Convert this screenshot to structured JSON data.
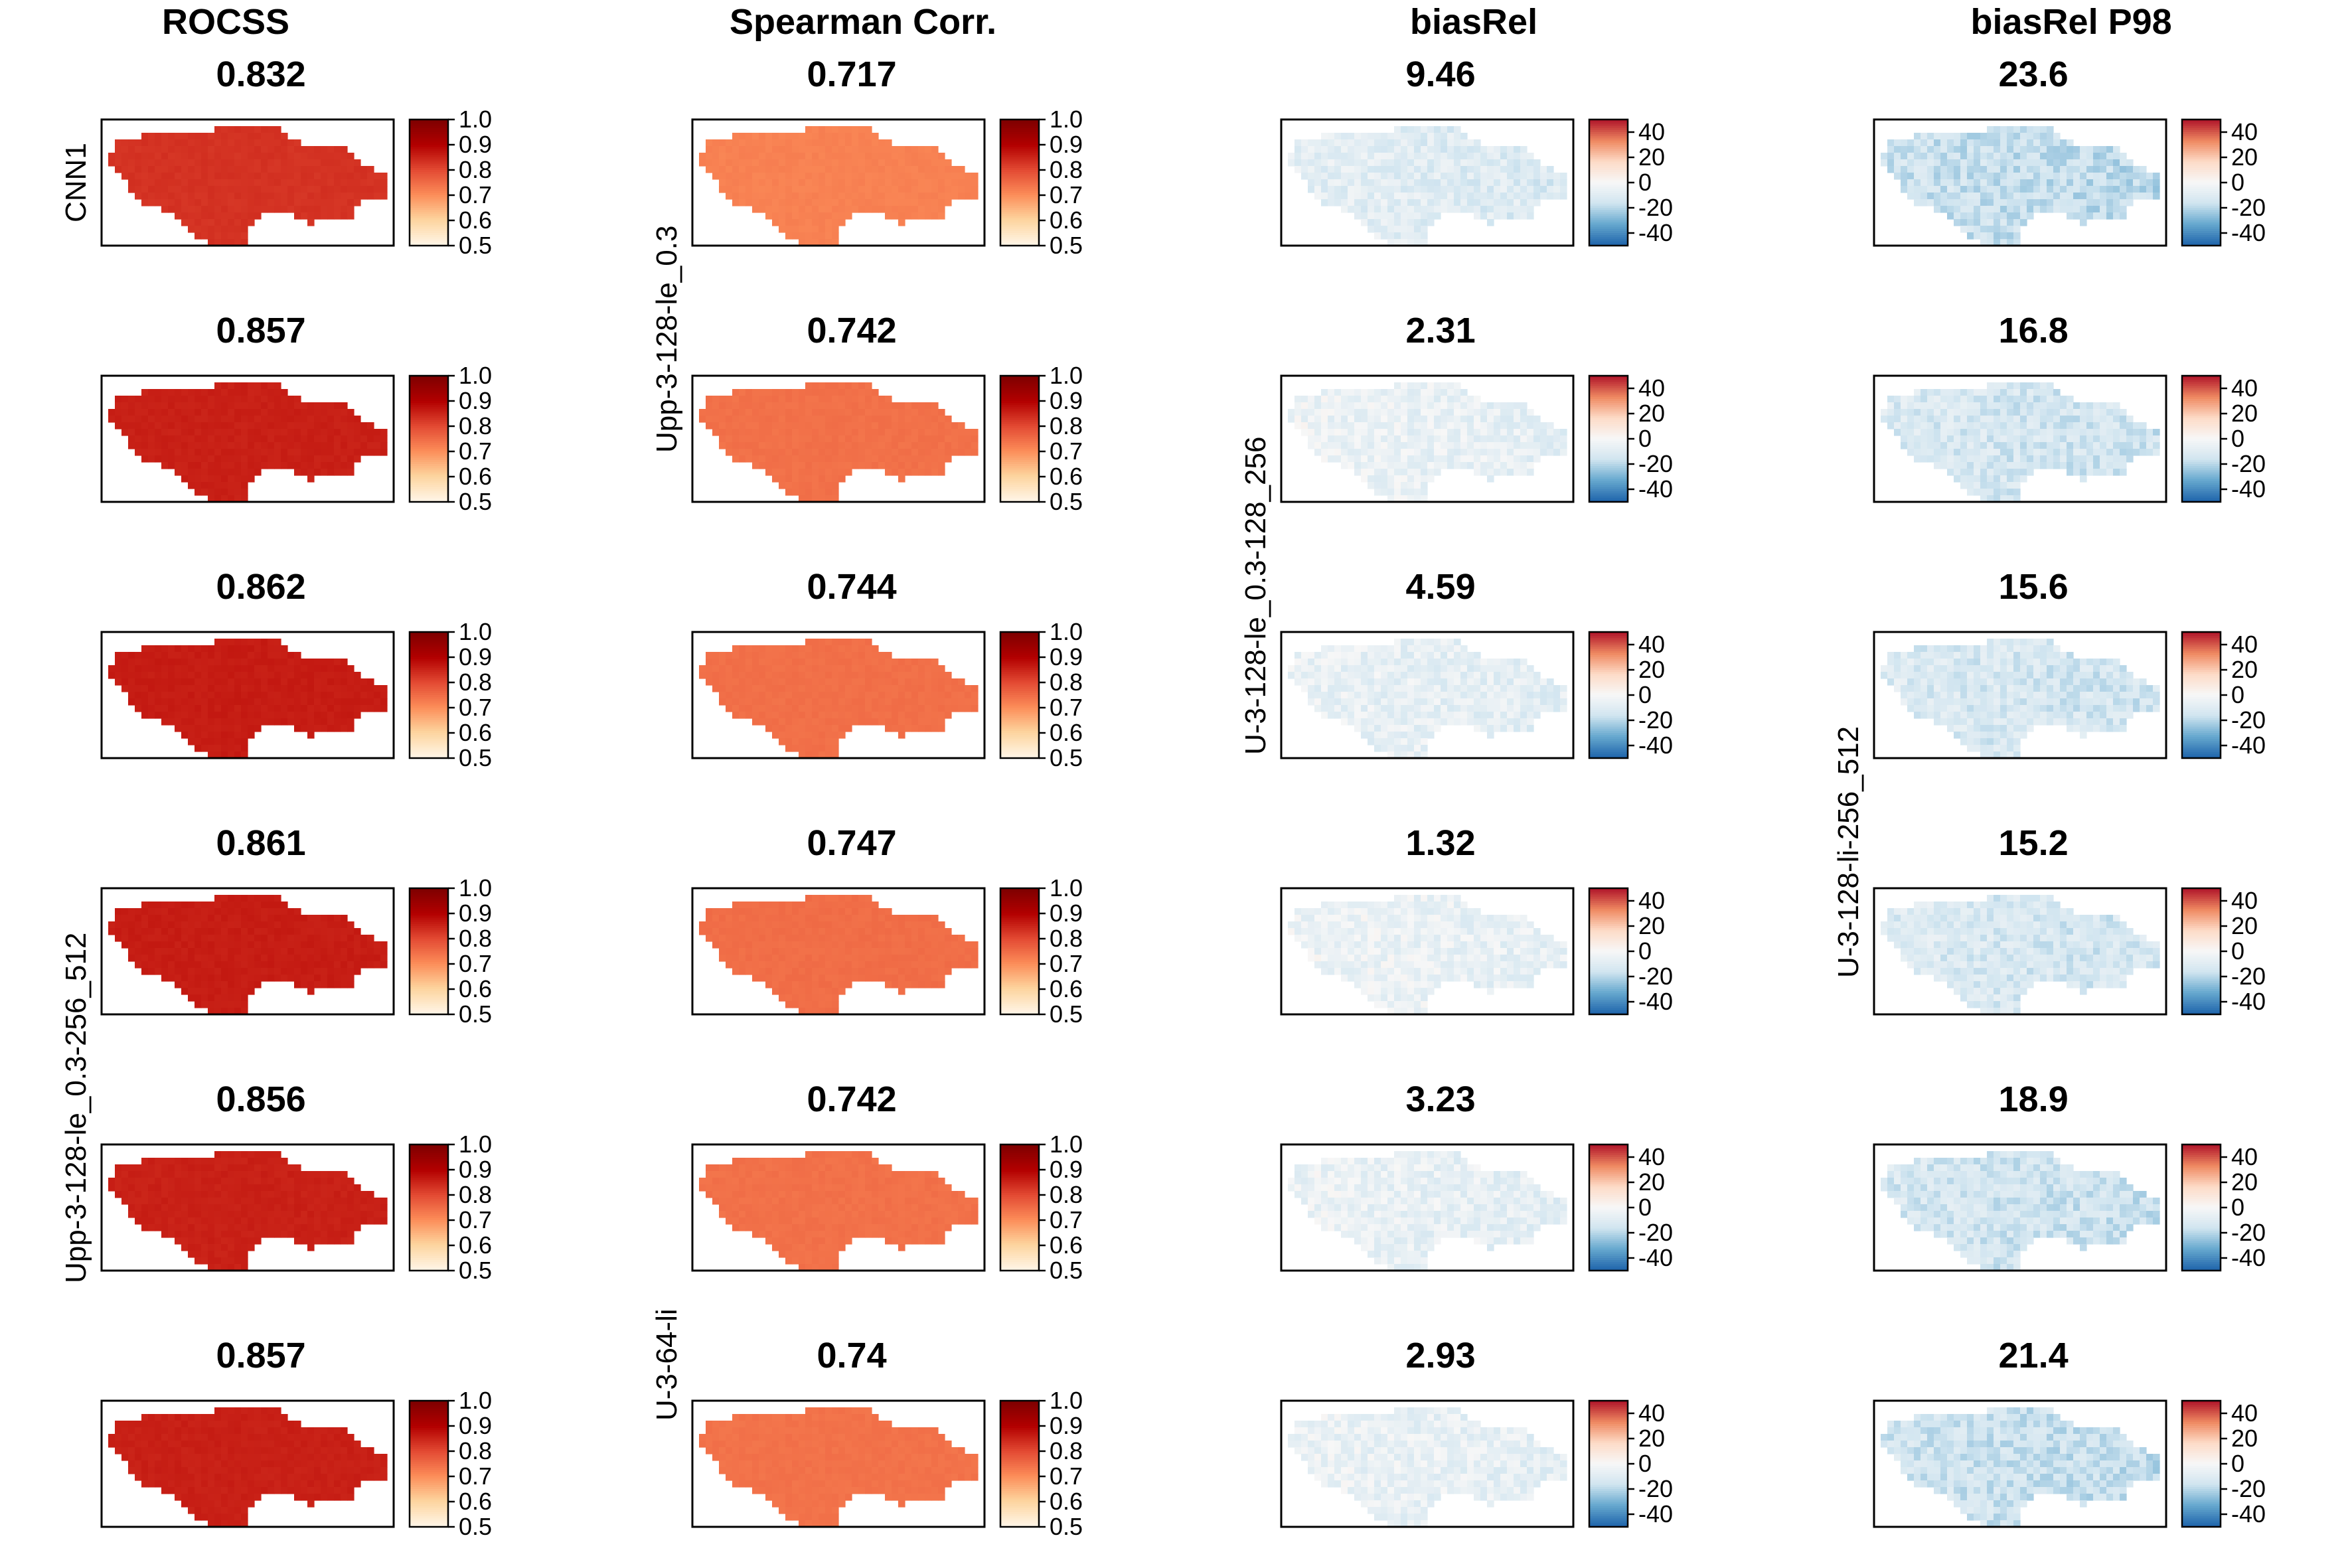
{
  "columns": [
    {
      "title": "ROCSS",
      "colormap": "reds",
      "ticks": [
        "1.0",
        "0.9",
        "0.8",
        "0.7",
        "0.6",
        "0.5"
      ],
      "range": [
        0.5,
        1.0
      ]
    },
    {
      "title": "Spearman Corr.",
      "colormap": "reds",
      "ticks": [
        "1.0",
        "0.9",
        "0.8",
        "0.7",
        "0.6",
        "0.5"
      ],
      "range": [
        0.5,
        1.0
      ]
    },
    {
      "title": "biasRel",
      "colormap": "diverging",
      "ticks": [
        "40",
        "20",
        "0",
        "-20",
        "-40"
      ],
      "range": [
        -50,
        50
      ]
    },
    {
      "title": "biasRel P98",
      "colormap": "diverging",
      "ticks": [
        "40",
        "20",
        "0",
        "-20",
        "-40"
      ],
      "range": [
        -50,
        50
      ]
    }
  ],
  "row_labels": [
    {
      "text": "CNN1",
      "col": 0,
      "row": 0
    },
    {
      "text": "Upp-3-128-le_0.3",
      "col": 1,
      "row": 1
    },
    {
      "text": "U-3-128-le_0.3-128_256",
      "col": 2,
      "row": 2
    },
    {
      "text": "U-3-128-li-256_512",
      "col": 3,
      "row": 3
    },
    {
      "text": "Upp-3-128-le_0.3-256_512",
      "col": 0,
      "row": 4
    },
    {
      "text": "U-3-64-li",
      "col": 1,
      "row": 5
    }
  ],
  "chart_data": {
    "type": "heatmap",
    "description_of_values": "mean score per panel (map panels: rows = models, columns = metrics)",
    "rows": 6,
    "columns": [
      "ROCSS",
      "Spearman Corr.",
      "biasRel",
      "biasRel P98"
    ],
    "values": [
      [
        "0.832",
        "0.717",
        "9.46",
        "23.6"
      ],
      [
        "0.857",
        "0.742",
        "2.31",
        "16.8"
      ],
      [
        "0.862",
        "0.744",
        "4.59",
        "15.6"
      ],
      [
        "0.861",
        "0.747",
        "1.32",
        "15.2"
      ],
      [
        "0.856",
        "0.742",
        "3.23",
        "18.9"
      ],
      [
        "0.857",
        "0.74",
        "2.93",
        "21.4"
      ]
    ],
    "colors": {
      "reds": [
        "#fff5e6",
        "#fdd49e",
        "#fc8d59",
        "#e34a33",
        "#b30000",
        "#7f0000"
      ],
      "diverging": [
        "#2166ac",
        "#67a9cf",
        "#d1e5f0",
        "#f7f7f7",
        "#fddbc7",
        "#ef8a62",
        "#b2182b"
      ]
    }
  }
}
